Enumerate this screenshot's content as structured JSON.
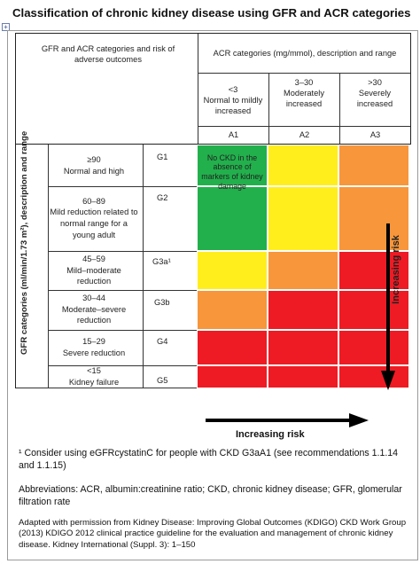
{
  "title": "Classification of chronic kidney disease using GFR and ACR categories",
  "expand_icon": "+",
  "header": {
    "left": "GFR and ACR categories and risk of adverse outcomes",
    "acr_header": "ACR categories (mg/mmol), description and range",
    "acr_cols": [
      {
        "range": "<3",
        "desc": "Normal to mildly increased",
        "code": "A1"
      },
      {
        "range": "3–30",
        "desc": "Moderately increased",
        "code": "A2"
      },
      {
        "range": ">30",
        "desc": "Severely increased",
        "code": "A3"
      }
    ]
  },
  "gfr_axis_label": "GFR categories (ml/min/1.73 m²), description and range",
  "gfr_rows": [
    {
      "label": "≥90\nNormal and high",
      "code": "G1"
    },
    {
      "label": "60–89\nMild reduction related to normal range for a young adult",
      "code": "G2"
    },
    {
      "label": "45–59\nMild–moderate reduction",
      "code": "G3a¹"
    },
    {
      "label": "30–44\nModerate–severe reduction",
      "code": "G3b"
    },
    {
      "label": "15–29\nSevere reduction",
      "code": "G4"
    },
    {
      "label": "<15\nKidney failure",
      "code": "G5"
    }
  ],
  "grid_colors": [
    [
      "green",
      "yellow",
      "orange"
    ],
    [
      "green",
      "yellow",
      "orange"
    ],
    [
      "yellow",
      "orange",
      "red"
    ],
    [
      "orange",
      "red",
      "red"
    ],
    [
      "red",
      "red",
      "red"
    ],
    [
      "red",
      "red",
      "red"
    ]
  ],
  "colors": {
    "green": "#22b04c",
    "yellow": "#ffee1c",
    "orange": "#f7963b",
    "red": "#ee1b24"
  },
  "green_note": "No CKD in the absence of markers of kidney damage",
  "risk_vertical": "Increasing risk",
  "risk_horizontal": "Increasing risk",
  "footnotes": {
    "note1": "¹ Consider using eGFRcystatinC for people with CKD G3aA1 (see recommendations 1.1.14 and 1.1.15)",
    "abbrev": "Abbreviations: ACR, albumin:creatinine ratio; CKD, chronic kidney disease; GFR, glomerular filtration rate",
    "source": "Adapted with permission from Kidney Disease: Improving Global Outcomes (KDIGO) CKD Work Group (2013) KDIGO 2012 clinical practice guideline for the evaluation and management of chronic kidney disease. Kidney International (Suppl. 3): 1–150"
  }
}
